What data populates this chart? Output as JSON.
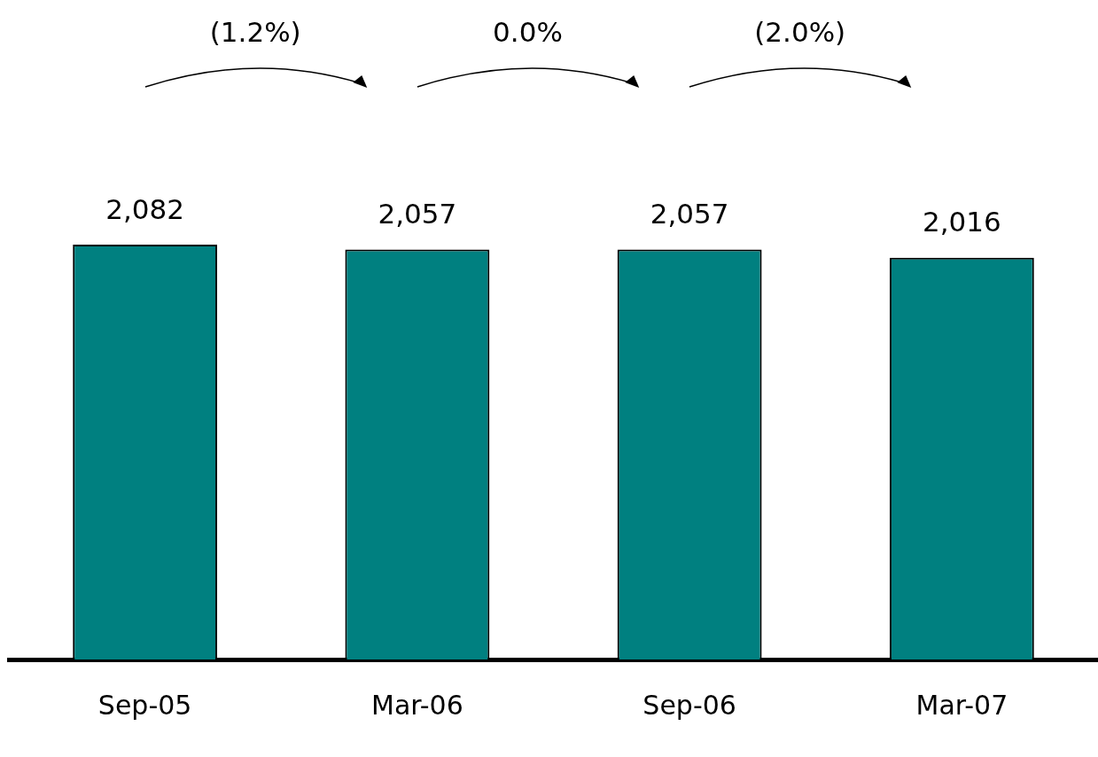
{
  "chart_data": {
    "type": "bar",
    "categories": [
      "Sep-05",
      "Mar-06",
      "Sep-06",
      "Mar-07"
    ],
    "values": [
      2082,
      2057,
      2057,
      2016
    ],
    "color": "#008080",
    "value_labels": [
      "2,082",
      "2,057",
      "2,057",
      "2,016"
    ],
    "annotations": [
      "(1.2%)",
      "0.0%",
      "(2.0%)"
    ]
  }
}
